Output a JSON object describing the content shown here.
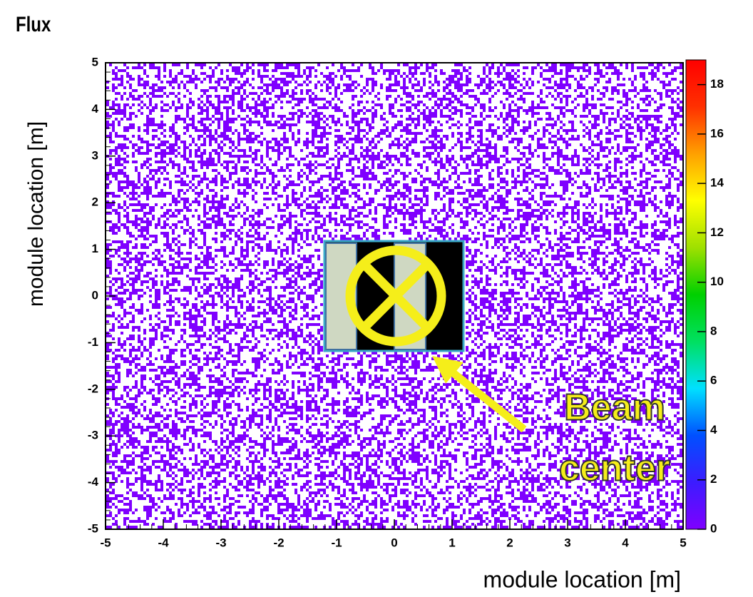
{
  "chart_data": {
    "type": "heatmap",
    "title": "Flux",
    "xlabel": "module location [m]",
    "ylabel": "module location [m]",
    "xlim": [
      -5,
      5
    ],
    "xticks": [
      -5,
      -4,
      -3,
      -2,
      -1,
      0,
      1,
      2,
      3,
      4,
      5
    ],
    "ylim": [
      -5,
      5
    ],
    "yticks": [
      -5,
      -4,
      -3,
      -2,
      -1,
      0,
      1,
      2,
      3,
      4,
      5
    ],
    "zlim": [
      0,
      19
    ],
    "zticks": [
      0,
      2,
      4,
      6,
      8,
      10,
      12,
      14,
      16,
      18
    ],
    "colormap": [
      "#7f00ff",
      "#3c1cff",
      "#0050ff",
      "#00e0ff",
      "#00e060",
      "#00d000",
      "#9fe000",
      "#ffff00",
      "#ffa000",
      "#ff3000",
      "#ff0000"
    ],
    "annotation": [
      "Beam",
      "center"
    ]
  }
}
